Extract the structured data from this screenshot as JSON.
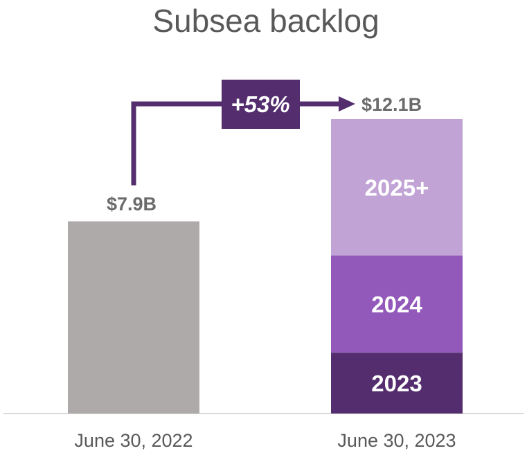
{
  "chart_data": {
    "type": "bar",
    "title": "Subsea backlog",
    "categories": [
      "June 30, 2022",
      "June 30, 2023"
    ],
    "totals": [
      "$7.9B",
      "$12.1B"
    ],
    "values": [
      7.9,
      12.1
    ],
    "stack": {
      "category": "June 30, 2023",
      "segments": [
        {
          "name": "2023",
          "value": 2.5,
          "color": "#532d6d"
        },
        {
          "name": "2024",
          "value": 4.0,
          "color": "#9259ba"
        },
        {
          "name": "2025+",
          "value": 5.6,
          "color": "#c1a3d6"
        }
      ]
    },
    "base_color": "#aeaaaa",
    "growth_label": "+53%",
    "accent_color": "#532d6d",
    "ylim": [
      0,
      12.1
    ],
    "grid": false,
    "legend": "none"
  }
}
